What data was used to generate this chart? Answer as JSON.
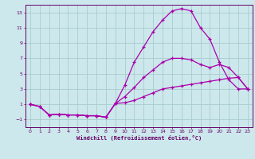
{
  "background_color": "#cce8ec",
  "grid_color": "#aacccc",
  "line_color": "#aa00aa",
  "xlabel": "Windchill (Refroidissement éolien,°C)",
  "xlabel_color": "#660066",
  "tick_color": "#660066",
  "xlim": [
    -0.5,
    23.5
  ],
  "ylim": [
    -2.0,
    14.0
  ],
  "xticks": [
    0,
    1,
    2,
    3,
    4,
    5,
    6,
    7,
    8,
    9,
    10,
    11,
    12,
    13,
    14,
    15,
    16,
    17,
    18,
    19,
    20,
    21,
    22,
    23
  ],
  "yticks": [
    -1,
    1,
    3,
    5,
    7,
    9,
    11,
    13
  ],
  "line1_x": [
    0,
    1,
    2,
    3,
    4,
    5,
    6,
    7,
    8,
    9,
    10,
    11,
    12,
    13,
    14,
    15,
    16,
    17,
    18,
    19,
    20,
    21,
    22,
    23
  ],
  "line1_y": [
    1.0,
    0.7,
    -0.4,
    -0.3,
    -0.4,
    -0.4,
    -0.5,
    -0.5,
    -0.7,
    1.1,
    1.2,
    1.5,
    2.0,
    2.5,
    3.0,
    3.2,
    3.4,
    3.6,
    3.8,
    4.0,
    4.2,
    4.4,
    4.5,
    3.0
  ],
  "line2_x": [
    0,
    1,
    2,
    3,
    4,
    5,
    6,
    7,
    8,
    9,
    10,
    11,
    12,
    13,
    14,
    15,
    16,
    17,
    18,
    19,
    20,
    21,
    22,
    23
  ],
  "line2_y": [
    1.0,
    0.7,
    -0.4,
    -0.3,
    -0.4,
    -0.4,
    -0.5,
    -0.5,
    -0.7,
    1.1,
    3.5,
    6.5,
    8.5,
    10.5,
    12.0,
    13.2,
    13.5,
    13.2,
    11.0,
    9.5,
    6.5,
    4.2,
    3.0,
    3.0
  ],
  "line3_x": [
    0,
    1,
    2,
    3,
    4,
    5,
    6,
    7,
    8,
    9,
    10,
    11,
    12,
    13,
    14,
    15,
    16,
    17,
    18,
    19,
    20,
    21,
    22,
    23
  ],
  "line3_y": [
    1.0,
    0.7,
    -0.4,
    -0.3,
    -0.4,
    -0.4,
    -0.5,
    -0.5,
    -0.7,
    1.1,
    2.0,
    3.2,
    4.5,
    5.5,
    6.5,
    7.0,
    7.0,
    6.8,
    6.2,
    5.8,
    6.2,
    5.8,
    4.5,
    3.0
  ]
}
